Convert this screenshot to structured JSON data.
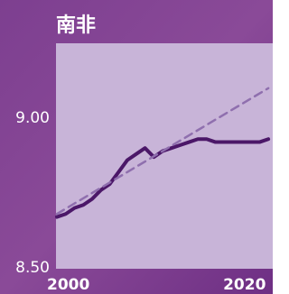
{
  "chart_data": {
    "type": "line",
    "title": "南非",
    "x": [
      2000,
      2001,
      2002,
      2003,
      2004,
      2005,
      2006,
      2007,
      2008,
      2009,
      2010,
      2011,
      2012,
      2013,
      2014,
      2015,
      2016,
      2017,
      2018,
      2019,
      2020,
      2021,
      2022,
      2023,
      2024
    ],
    "series": [
      {
        "color": "#4b1768",
        "values": [
          8.67,
          8.68,
          8.7,
          8.71,
          8.73,
          8.76,
          8.78,
          8.82,
          8.86,
          8.88,
          8.9,
          8.87,
          8.89,
          8.9,
          8.91,
          8.92,
          8.93,
          8.93,
          8.92,
          8.92,
          8.92,
          8.92,
          8.92,
          8.92,
          8.93
        ]
      },
      {
        "color": "#8f6fae",
        "dashed": true,
        "x": [
          2000,
          2024
        ],
        "values": [
          8.68,
          9.1
        ]
      }
    ],
    "xlim": [
      2000,
      2024.5
    ],
    "ylim": [
      8.5,
      9.25
    ],
    "xticks": [
      2000,
      2020
    ],
    "yticks": [
      {
        "value": 8.5,
        "label": "8.50"
      },
      {
        "value": 9,
        "label": "9.00"
      }
    ]
  }
}
